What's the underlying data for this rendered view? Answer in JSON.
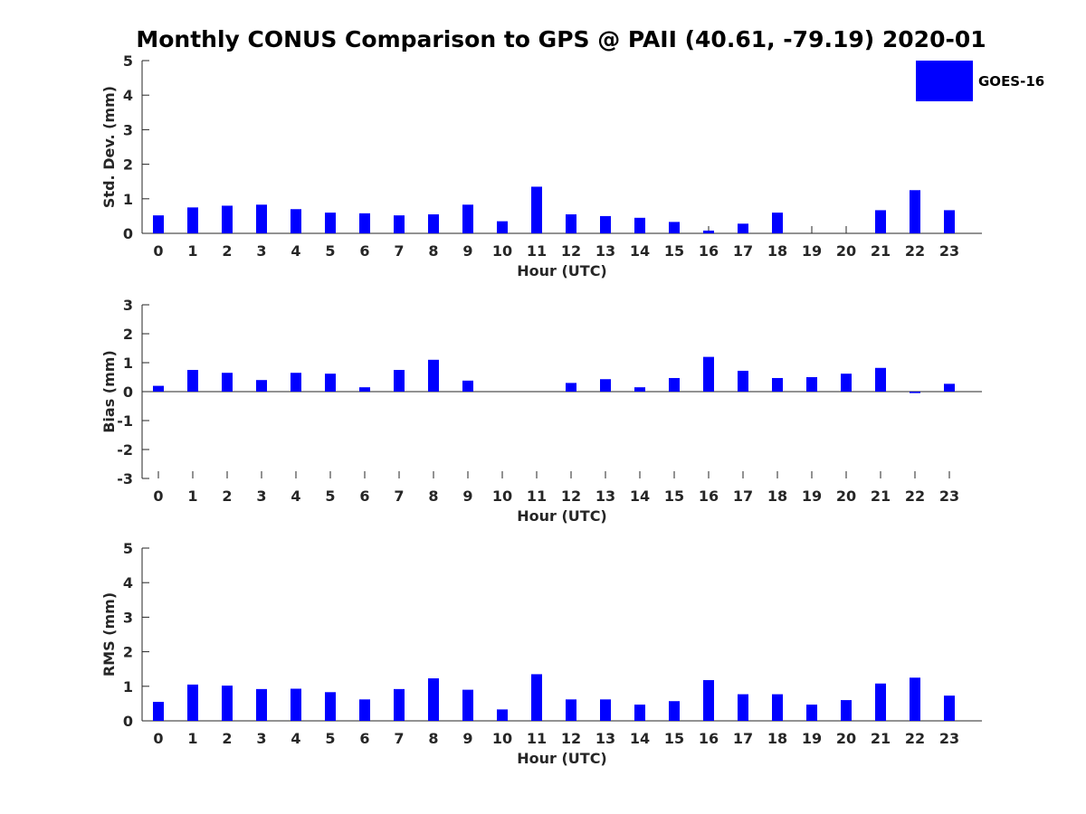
{
  "title": "Monthly CONUS Comparison to GPS @ PAII (40.61, -79.19) 2020-01",
  "legend": {
    "label": "GOES-16",
    "color": "#0000ff"
  },
  "chart_data": [
    {
      "type": "bar",
      "name": "stddev",
      "title": "Monthly CONUS Comparison to GPS @ PAII (40.61, -79.19) 2020-01",
      "xlabel": "Hour (UTC)",
      "ylabel": "Std. Dev. (mm)",
      "ylim": [
        0,
        5
      ],
      "yticks": [
        0,
        1,
        2,
        3,
        4,
        5
      ],
      "categories": [
        "0",
        "1",
        "2",
        "3",
        "4",
        "5",
        "6",
        "7",
        "8",
        "9",
        "10",
        "11",
        "12",
        "13",
        "14",
        "15",
        "16",
        "17",
        "18",
        "19",
        "20",
        "21",
        "22",
        "23"
      ],
      "series": [
        {
          "name": "GOES-16",
          "values": [
            0.52,
            0.75,
            0.8,
            0.83,
            0.7,
            0.6,
            0.58,
            0.52,
            0.55,
            0.83,
            0.35,
            1.35,
            0.55,
            0.5,
            0.45,
            0.33,
            0.08,
            0.28,
            0.6,
            0,
            0,
            0.67,
            1.25,
            0.67
          ]
        }
      ]
    },
    {
      "type": "bar",
      "name": "bias",
      "xlabel": "Hour (UTC)",
      "ylabel": "Bias (mm)",
      "ylim": [
        -3,
        3
      ],
      "yticks": [
        -3,
        -2,
        -1,
        0,
        1,
        2,
        3
      ],
      "categories": [
        "0",
        "1",
        "2",
        "3",
        "4",
        "5",
        "6",
        "7",
        "8",
        "9",
        "10",
        "11",
        "12",
        "13",
        "14",
        "15",
        "16",
        "17",
        "18",
        "19",
        "20",
        "21",
        "22",
        "23"
      ],
      "series": [
        {
          "name": "GOES-16",
          "values": [
            0.2,
            0.75,
            0.65,
            0.4,
            0.65,
            0.62,
            0.15,
            0.75,
            1.1,
            0.38,
            0,
            0,
            0.3,
            0.43,
            0.15,
            0.47,
            1.2,
            0.72,
            0.47,
            0.5,
            0.62,
            0.82,
            -0.05,
            0.27
          ]
        }
      ]
    },
    {
      "type": "bar",
      "name": "rms",
      "xlabel": "Hour (UTC)",
      "ylabel": "RMS (mm)",
      "ylim": [
        0,
        5
      ],
      "yticks": [
        0,
        1,
        2,
        3,
        4,
        5
      ],
      "categories": [
        "0",
        "1",
        "2",
        "3",
        "4",
        "5",
        "6",
        "7",
        "8",
        "9",
        "10",
        "11",
        "12",
        "13",
        "14",
        "15",
        "16",
        "17",
        "18",
        "19",
        "20",
        "21",
        "22",
        "23"
      ],
      "series": [
        {
          "name": "GOES-16",
          "values": [
            0.55,
            1.05,
            1.02,
            0.92,
            0.93,
            0.83,
            0.62,
            0.92,
            1.23,
            0.9,
            0.33,
            1.35,
            0.62,
            0.62,
            0.47,
            0.57,
            1.18,
            0.77,
            0.77,
            0.47,
            0.6,
            1.08,
            1.25,
            0.73
          ]
        }
      ]
    }
  ]
}
